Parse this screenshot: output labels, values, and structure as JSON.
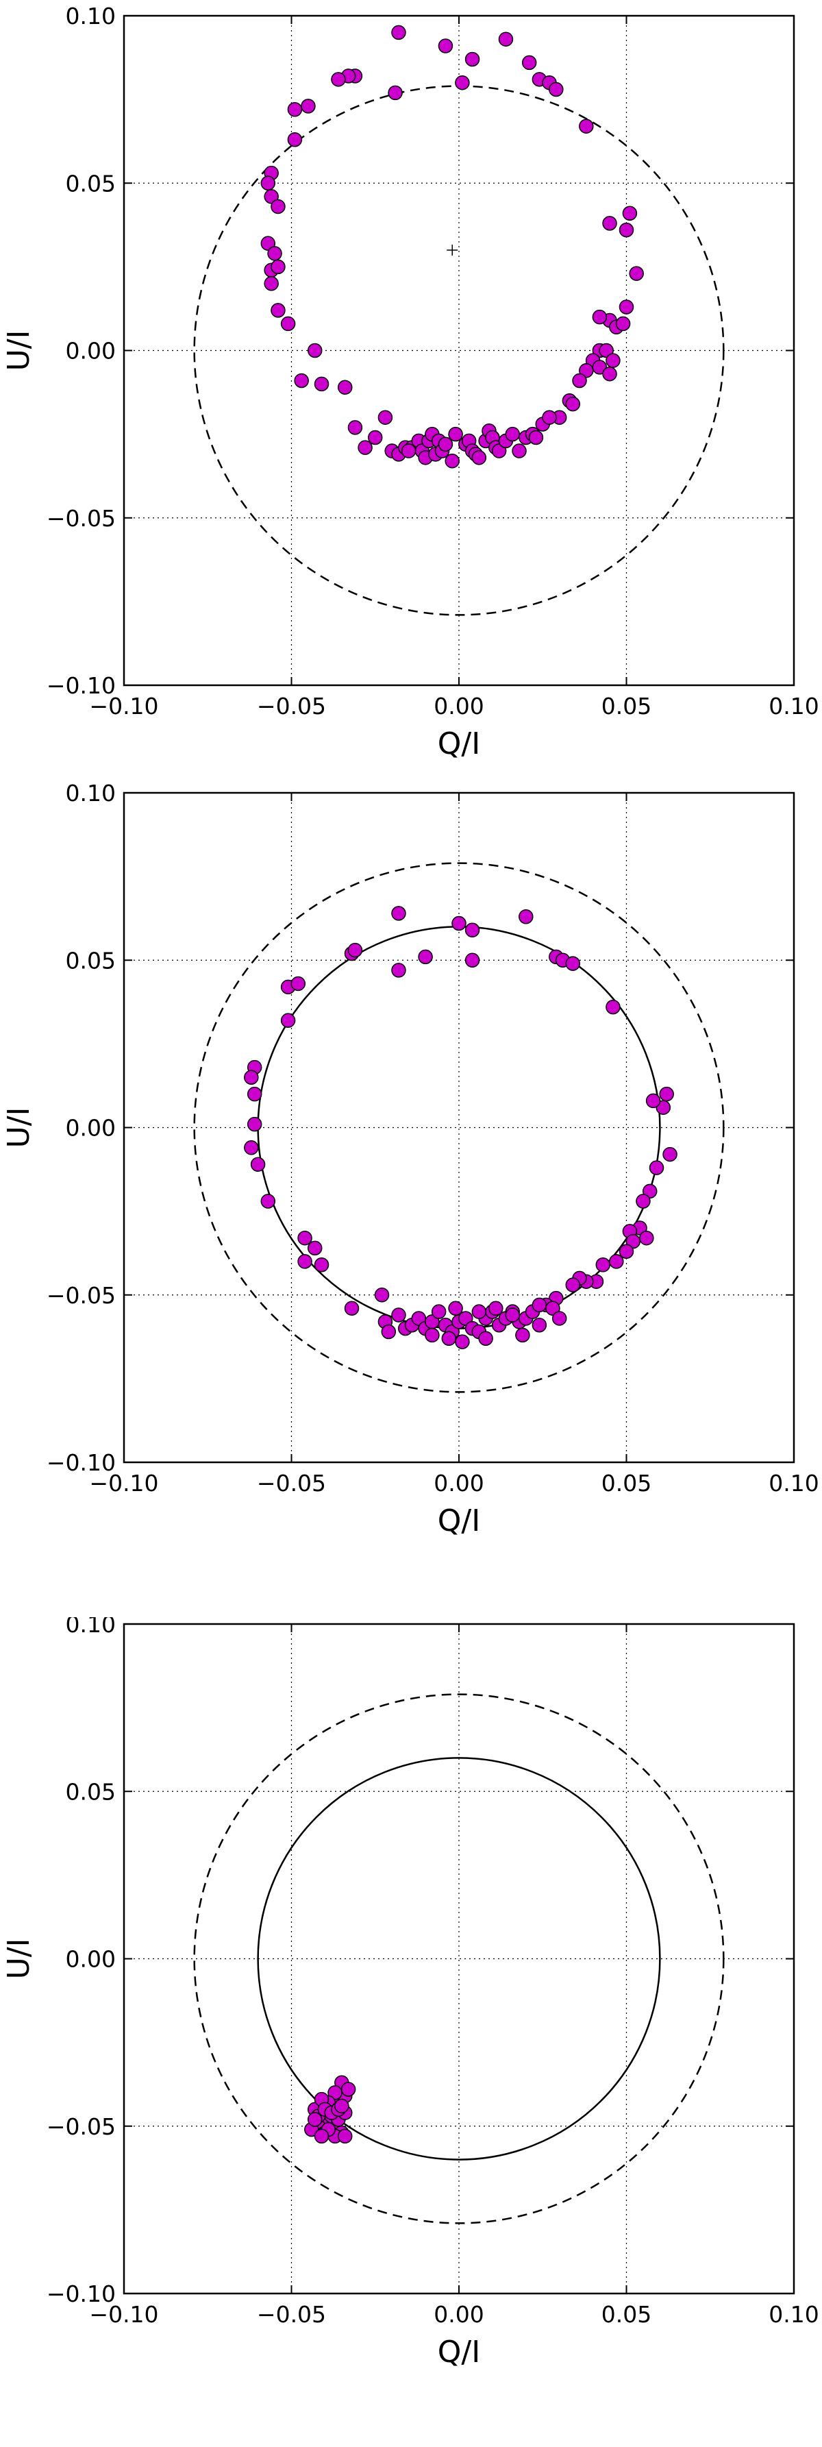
{
  "chart_data": [
    {
      "type": "scatter",
      "title": "",
      "xlabel": "Q/I",
      "ylabel": "U/I",
      "xlim": [
        -0.1,
        0.1
      ],
      "ylim": [
        -0.1,
        0.1
      ],
      "xticks": [
        "−0.10",
        "−0.05",
        "0.00",
        "0.05",
        "0.10"
      ],
      "yticks": [
        "−0.10",
        "−0.05",
        "0.00",
        "0.05",
        "0.10"
      ],
      "grid": true,
      "marker_color": "#cc00cc",
      "dashed_circle_radius": 0.079,
      "solid_circle_radius": null,
      "center_marker": [
        -0.002,
        0.03
      ],
      "points": [
        [
          -0.018,
          0.095
        ],
        [
          -0.004,
          0.091
        ],
        [
          0.014,
          0.093
        ],
        [
          0.001,
          0.08
        ],
        [
          0.004,
          0.087
        ],
        [
          0.021,
          0.086
        ],
        [
          0.024,
          0.081
        ],
        [
          0.027,
          0.08
        ],
        [
          0.029,
          0.078
        ],
        [
          -0.019,
          0.077
        ],
        [
          -0.031,
          0.082
        ],
        [
          -0.033,
          0.082
        ],
        [
          -0.036,
          0.081
        ],
        [
          -0.045,
          0.073
        ],
        [
          -0.049,
          0.072
        ],
        [
          -0.049,
          0.063
        ],
        [
          0.038,
          0.067
        ],
        [
          -0.056,
          0.053
        ],
        [
          -0.057,
          0.05
        ],
        [
          -0.056,
          0.046
        ],
        [
          -0.054,
          0.043
        ],
        [
          -0.057,
          0.032
        ],
        [
          -0.055,
          0.029
        ],
        [
          -0.056,
          0.024
        ],
        [
          -0.054,
          0.025
        ],
        [
          -0.056,
          0.02
        ],
        [
          -0.054,
          0.012
        ],
        [
          -0.051,
          0.008
        ],
        [
          0.051,
          0.041
        ],
        [
          0.05,
          0.036
        ],
        [
          0.045,
          0.038
        ],
        [
          0.053,
          0.023
        ],
        [
          0.05,
          0.013
        ],
        [
          0.045,
          0.009
        ],
        [
          0.042,
          0.01
        ],
        [
          0.047,
          0.007
        ],
        [
          0.049,
          0.008
        ],
        [
          0.042,
          0.0
        ],
        [
          0.044,
          0.0
        ],
        [
          0.046,
          -0.003
        ],
        [
          0.04,
          -0.003
        ],
        [
          0.038,
          -0.006
        ],
        [
          0.036,
          -0.009
        ],
        [
          0.042,
          -0.005
        ],
        [
          0.045,
          -0.007
        ],
        [
          0.033,
          -0.015
        ],
        [
          0.034,
          -0.016
        ],
        [
          0.03,
          -0.02
        ],
        [
          -0.043,
          0.0
        ],
        [
          -0.047,
          -0.009
        ],
        [
          -0.041,
          -0.01
        ],
        [
          -0.034,
          -0.011
        ],
        [
          -0.031,
          -0.023
        ],
        [
          -0.022,
          -0.02
        ],
        [
          -0.02,
          -0.03
        ],
        [
          -0.018,
          -0.031
        ],
        [
          -0.016,
          -0.029
        ],
        [
          -0.014,
          -0.029
        ],
        [
          -0.012,
          -0.027
        ],
        [
          -0.011,
          -0.03
        ],
        [
          -0.01,
          -0.032
        ],
        [
          -0.009,
          -0.027
        ],
        [
          -0.008,
          -0.025
        ],
        [
          -0.007,
          -0.031
        ],
        [
          -0.006,
          -0.027
        ],
        [
          -0.005,
          -0.03
        ],
        [
          -0.004,
          -0.028
        ],
        [
          -0.002,
          -0.033
        ],
        [
          -0.001,
          -0.025
        ],
        [
          0.002,
          -0.028
        ],
        [
          0.003,
          -0.027
        ],
        [
          0.004,
          -0.03
        ],
        [
          0.005,
          -0.031
        ],
        [
          0.006,
          -0.032
        ],
        [
          0.008,
          -0.027
        ],
        [
          0.009,
          -0.024
        ],
        [
          0.01,
          -0.026
        ],
        [
          0.011,
          -0.029
        ],
        [
          0.012,
          -0.03
        ],
        [
          0.014,
          -0.027
        ],
        [
          0.016,
          -0.025
        ],
        [
          0.018,
          -0.03
        ],
        [
          0.02,
          -0.026
        ],
        [
          0.022,
          -0.025
        ],
        [
          0.023,
          -0.026
        ],
        [
          0.025,
          -0.022
        ],
        [
          0.027,
          -0.02
        ],
        [
          -0.028,
          -0.029
        ],
        [
          -0.025,
          -0.026
        ],
        [
          -0.015,
          -0.03
        ]
      ]
    },
    {
      "type": "scatter",
      "title": "",
      "xlabel": "Q/I",
      "ylabel": "U/I",
      "xlim": [
        -0.1,
        0.1
      ],
      "ylim": [
        -0.1,
        0.1
      ],
      "xticks": [
        "−0.10",
        "−0.05",
        "0.00",
        "0.05",
        "0.10"
      ],
      "yticks": [
        "−0.10",
        "−0.05",
        "0.00",
        "0.05",
        "0.10"
      ],
      "grid": true,
      "marker_color": "#cc00cc",
      "dashed_circle_radius": 0.079,
      "solid_circle_radius": 0.06,
      "center_marker": null,
      "points": [
        [
          -0.018,
          0.064
        ],
        [
          0.0,
          0.061
        ],
        [
          0.02,
          0.063
        ],
        [
          -0.01,
          0.051
        ],
        [
          -0.018,
          0.047
        ],
        [
          0.004,
          0.059
        ],
        [
          0.004,
          0.05
        ],
        [
          0.029,
          0.051
        ],
        [
          0.031,
          0.05
        ],
        [
          0.034,
          0.049
        ],
        [
          -0.032,
          0.052
        ],
        [
          -0.031,
          0.053
        ],
        [
          -0.051,
          0.042
        ],
        [
          -0.048,
          0.043
        ],
        [
          -0.051,
          0.032
        ],
        [
          0.046,
          0.036
        ],
        [
          -0.061,
          0.018
        ],
        [
          -0.062,
          0.015
        ],
        [
          -0.061,
          0.01
        ],
        [
          -0.061,
          0.001
        ],
        [
          -0.062,
          -0.006
        ],
        [
          -0.06,
          -0.011
        ],
        [
          -0.057,
          -0.022
        ],
        [
          0.062,
          0.01
        ],
        [
          0.061,
          0.006
        ],
        [
          0.058,
          0.008
        ],
        [
          0.063,
          -0.008
        ],
        [
          0.059,
          -0.012
        ],
        [
          0.057,
          -0.019
        ],
        [
          0.055,
          -0.022
        ],
        [
          0.054,
          -0.03
        ],
        [
          0.051,
          -0.031
        ],
        [
          0.052,
          -0.034
        ],
        [
          0.056,
          -0.033
        ],
        [
          0.05,
          -0.037
        ],
        [
          0.047,
          -0.04
        ],
        [
          0.043,
          -0.041
        ],
        [
          0.041,
          -0.046
        ],
        [
          0.038,
          -0.046
        ],
        [
          0.036,
          -0.045
        ],
        [
          0.034,
          -0.047
        ],
        [
          0.029,
          -0.051
        ],
        [
          -0.046,
          -0.033
        ],
        [
          -0.043,
          -0.036
        ],
        [
          -0.041,
          -0.041
        ],
        [
          -0.046,
          -0.04
        ],
        [
          -0.032,
          -0.054
        ],
        [
          -0.023,
          -0.05
        ],
        [
          -0.018,
          -0.056
        ],
        [
          -0.016,
          -0.06
        ],
        [
          -0.014,
          -0.059
        ],
        [
          -0.012,
          -0.057
        ],
        [
          -0.01,
          -0.06
        ],
        [
          -0.008,
          -0.058
        ],
        [
          -0.006,
          -0.055
        ],
        [
          -0.004,
          -0.059
        ],
        [
          -0.002,
          -0.061
        ],
        [
          0.0,
          -0.058
        ],
        [
          0.002,
          -0.057
        ],
        [
          0.004,
          -0.06
        ],
        [
          0.006,
          -0.061
        ],
        [
          0.008,
          -0.057
        ],
        [
          0.01,
          -0.055
        ],
        [
          0.012,
          -0.059
        ],
        [
          0.014,
          -0.057
        ],
        [
          0.016,
          -0.055
        ],
        [
          0.018,
          -0.058
        ],
        [
          0.02,
          -0.057
        ],
        [
          0.022,
          -0.055
        ],
        [
          0.024,
          -0.059
        ],
        [
          0.026,
          -0.053
        ],
        [
          0.028,
          -0.054
        ],
        [
          0.03,
          -0.057
        ],
        [
          -0.022,
          -0.058
        ],
        [
          -0.008,
          -0.062
        ],
        [
          0.001,
          -0.064
        ],
        [
          0.006,
          -0.055
        ],
        [
          0.011,
          -0.054
        ],
        [
          0.016,
          -0.056
        ],
        [
          -0.001,
          -0.054
        ],
        [
          -0.021,
          -0.061
        ],
        [
          0.024,
          -0.053
        ],
        [
          -0.003,
          -0.063
        ],
        [
          0.008,
          -0.063
        ],
        [
          0.019,
          -0.062
        ]
      ]
    },
    {
      "type": "scatter",
      "title": "",
      "xlabel": "Q/I",
      "ylabel": "U/I",
      "xlim": [
        -0.1,
        0.1
      ],
      "ylim": [
        -0.1,
        0.1
      ],
      "xticks": [
        "−0.10",
        "−0.05",
        "0.00",
        "0.05",
        "0.10"
      ],
      "yticks": [
        "−0.10",
        "−0.05",
        "0.00",
        "0.05",
        "0.10"
      ],
      "grid": true,
      "marker_color": "#cc00cc",
      "dashed_circle_radius": 0.079,
      "solid_circle_radius": 0.06,
      "center_marker": null,
      "points": [
        [
          -0.043,
          -0.045
        ],
        [
          -0.04,
          -0.046
        ],
        [
          -0.038,
          -0.044
        ],
        [
          -0.036,
          -0.043
        ],
        [
          -0.034,
          -0.041
        ],
        [
          -0.035,
          -0.037
        ],
        [
          -0.033,
          -0.039
        ],
        [
          -0.037,
          -0.04
        ],
        [
          -0.041,
          -0.048
        ],
        [
          -0.039,
          -0.049
        ],
        [
          -0.042,
          -0.05
        ],
        [
          -0.044,
          -0.051
        ],
        [
          -0.04,
          -0.052
        ],
        [
          -0.037,
          -0.05
        ],
        [
          -0.035,
          -0.052
        ],
        [
          -0.038,
          -0.047
        ],
        [
          -0.036,
          -0.048
        ],
        [
          -0.034,
          -0.046
        ],
        [
          -0.039,
          -0.043
        ],
        [
          -0.041,
          -0.042
        ],
        [
          -0.042,
          -0.047
        ],
        [
          -0.043,
          -0.048
        ],
        [
          -0.037,
          -0.053
        ],
        [
          -0.034,
          -0.053
        ],
        [
          -0.04,
          -0.045
        ],
        [
          -0.038,
          -0.046
        ],
        [
          -0.036,
          -0.045
        ],
        [
          -0.035,
          -0.044
        ],
        [
          -0.039,
          -0.051
        ],
        [
          -0.041,
          -0.053
        ]
      ]
    }
  ]
}
